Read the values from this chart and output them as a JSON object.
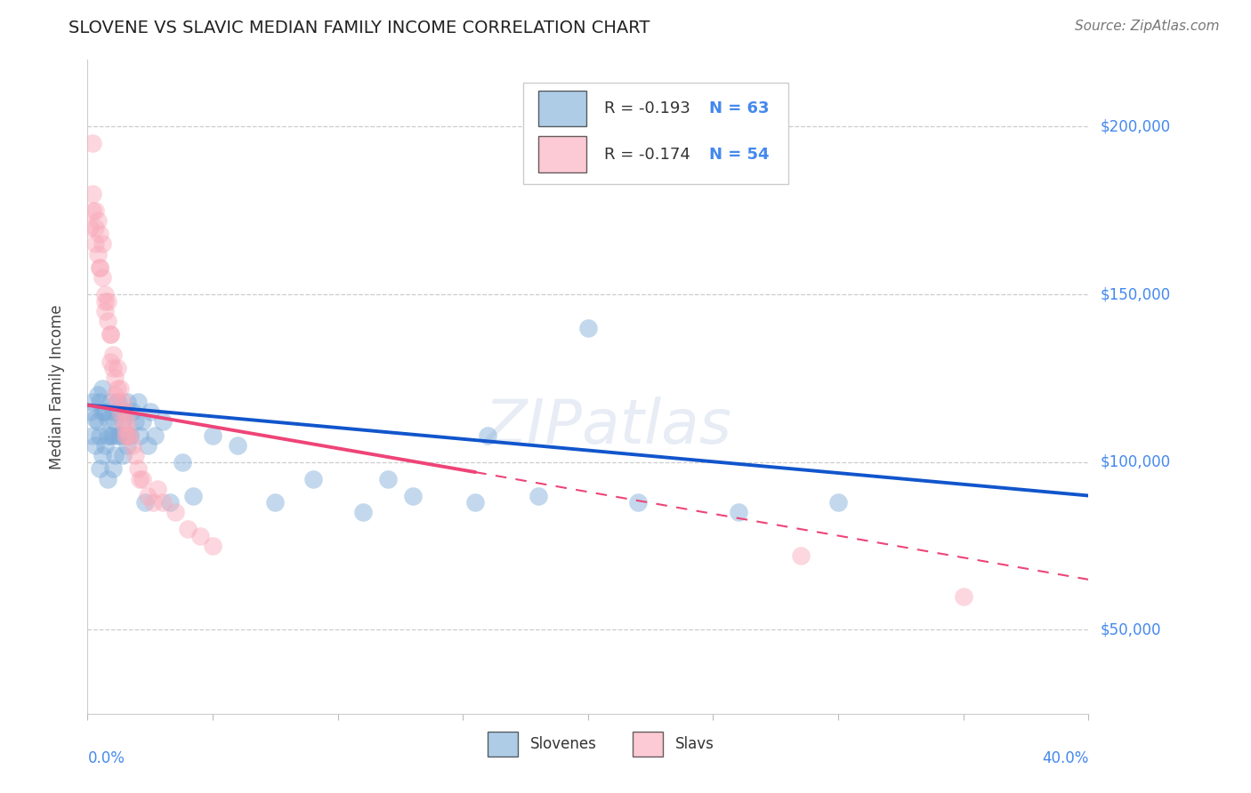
{
  "title": "SLOVENE VS SLAVIC MEDIAN FAMILY INCOME CORRELATION CHART",
  "source": "Source: ZipAtlas.com",
  "ylabel": "Median Family Income",
  "legend_R0": "R = -0.193",
  "legend_R1": "R = -0.174",
  "legend_N0": "N = 63",
  "legend_N1": "N = 54",
  "ytick_labels": [
    "$50,000",
    "$100,000",
    "$150,000",
    "$200,000"
  ],
  "ytick_values": [
    50000,
    100000,
    150000,
    200000
  ],
  "xlim": [
    0.0,
    0.4
  ],
  "ylim": [
    25000,
    220000
  ],
  "color_slovenes": "#7AAAD8",
  "color_slavs": "#F9A8B8",
  "color_blue_line": "#1155CC",
  "color_pink_line": "#EE4477",
  "color_axis_vals": "#4488EE",
  "background_color": "#FFFFFF",
  "slovenes_x": [
    0.001,
    0.002,
    0.002,
    0.003,
    0.003,
    0.004,
    0.004,
    0.005,
    0.005,
    0.005,
    0.006,
    0.006,
    0.006,
    0.007,
    0.007,
    0.008,
    0.008,
    0.008,
    0.009,
    0.009,
    0.01,
    0.01,
    0.01,
    0.011,
    0.011,
    0.012,
    0.012,
    0.013,
    0.013,
    0.014,
    0.014,
    0.015,
    0.015,
    0.016,
    0.016,
    0.017,
    0.018,
    0.019,
    0.02,
    0.021,
    0.022,
    0.023,
    0.024,
    0.025,
    0.027,
    0.03,
    0.033,
    0.038,
    0.042,
    0.05,
    0.06,
    0.075,
    0.09,
    0.11,
    0.13,
    0.155,
    0.18,
    0.22,
    0.26,
    0.3,
    0.2,
    0.16,
    0.12
  ],
  "slovenes_y": [
    115000,
    118000,
    108000,
    113000,
    105000,
    120000,
    112000,
    118000,
    108000,
    98000,
    115000,
    122000,
    102000,
    115000,
    105000,
    113000,
    108000,
    95000,
    118000,
    108000,
    115000,
    108000,
    98000,
    112000,
    102000,
    108000,
    118000,
    115000,
    108000,
    112000,
    102000,
    108000,
    115000,
    118000,
    105000,
    108000,
    115000,
    112000,
    118000,
    108000,
    112000,
    88000,
    105000,
    115000,
    108000,
    112000,
    88000,
    100000,
    90000,
    108000,
    105000,
    88000,
    95000,
    85000,
    90000,
    88000,
    90000,
    88000,
    85000,
    88000,
    140000,
    108000,
    95000
  ],
  "slavs_x": [
    0.001,
    0.002,
    0.002,
    0.003,
    0.003,
    0.004,
    0.004,
    0.005,
    0.005,
    0.006,
    0.006,
    0.007,
    0.007,
    0.008,
    0.008,
    0.009,
    0.009,
    0.01,
    0.01,
    0.011,
    0.011,
    0.012,
    0.012,
    0.013,
    0.013,
    0.014,
    0.014,
    0.015,
    0.015,
    0.016,
    0.016,
    0.017,
    0.018,
    0.019,
    0.02,
    0.021,
    0.022,
    0.024,
    0.026,
    0.028,
    0.03,
    0.035,
    0.04,
    0.045,
    0.05,
    0.002,
    0.003,
    0.005,
    0.007,
    0.009,
    0.012,
    0.015,
    0.35,
    0.285
  ],
  "slavs_y": [
    170000,
    175000,
    195000,
    165000,
    175000,
    162000,
    172000,
    158000,
    168000,
    155000,
    165000,
    150000,
    145000,
    142000,
    148000,
    138000,
    130000,
    132000,
    128000,
    125000,
    120000,
    118000,
    128000,
    115000,
    122000,
    112000,
    118000,
    110000,
    115000,
    108000,
    112000,
    108000,
    105000,
    102000,
    98000,
    95000,
    95000,
    90000,
    88000,
    92000,
    88000,
    85000,
    80000,
    78000,
    75000,
    180000,
    170000,
    158000,
    148000,
    138000,
    122000,
    108000,
    60000,
    72000
  ],
  "blue_line_x0": 0.0,
  "blue_line_y0": 117000,
  "blue_line_x1": 0.4,
  "blue_line_y1": 90000,
  "pink_line_x0": 0.0,
  "pink_line_y0": 117000,
  "pink_line_solid_x1": 0.155,
  "pink_line_solid_y1": 97000,
  "pink_line_dash_x1": 0.4,
  "pink_line_dash_y1": 65000
}
